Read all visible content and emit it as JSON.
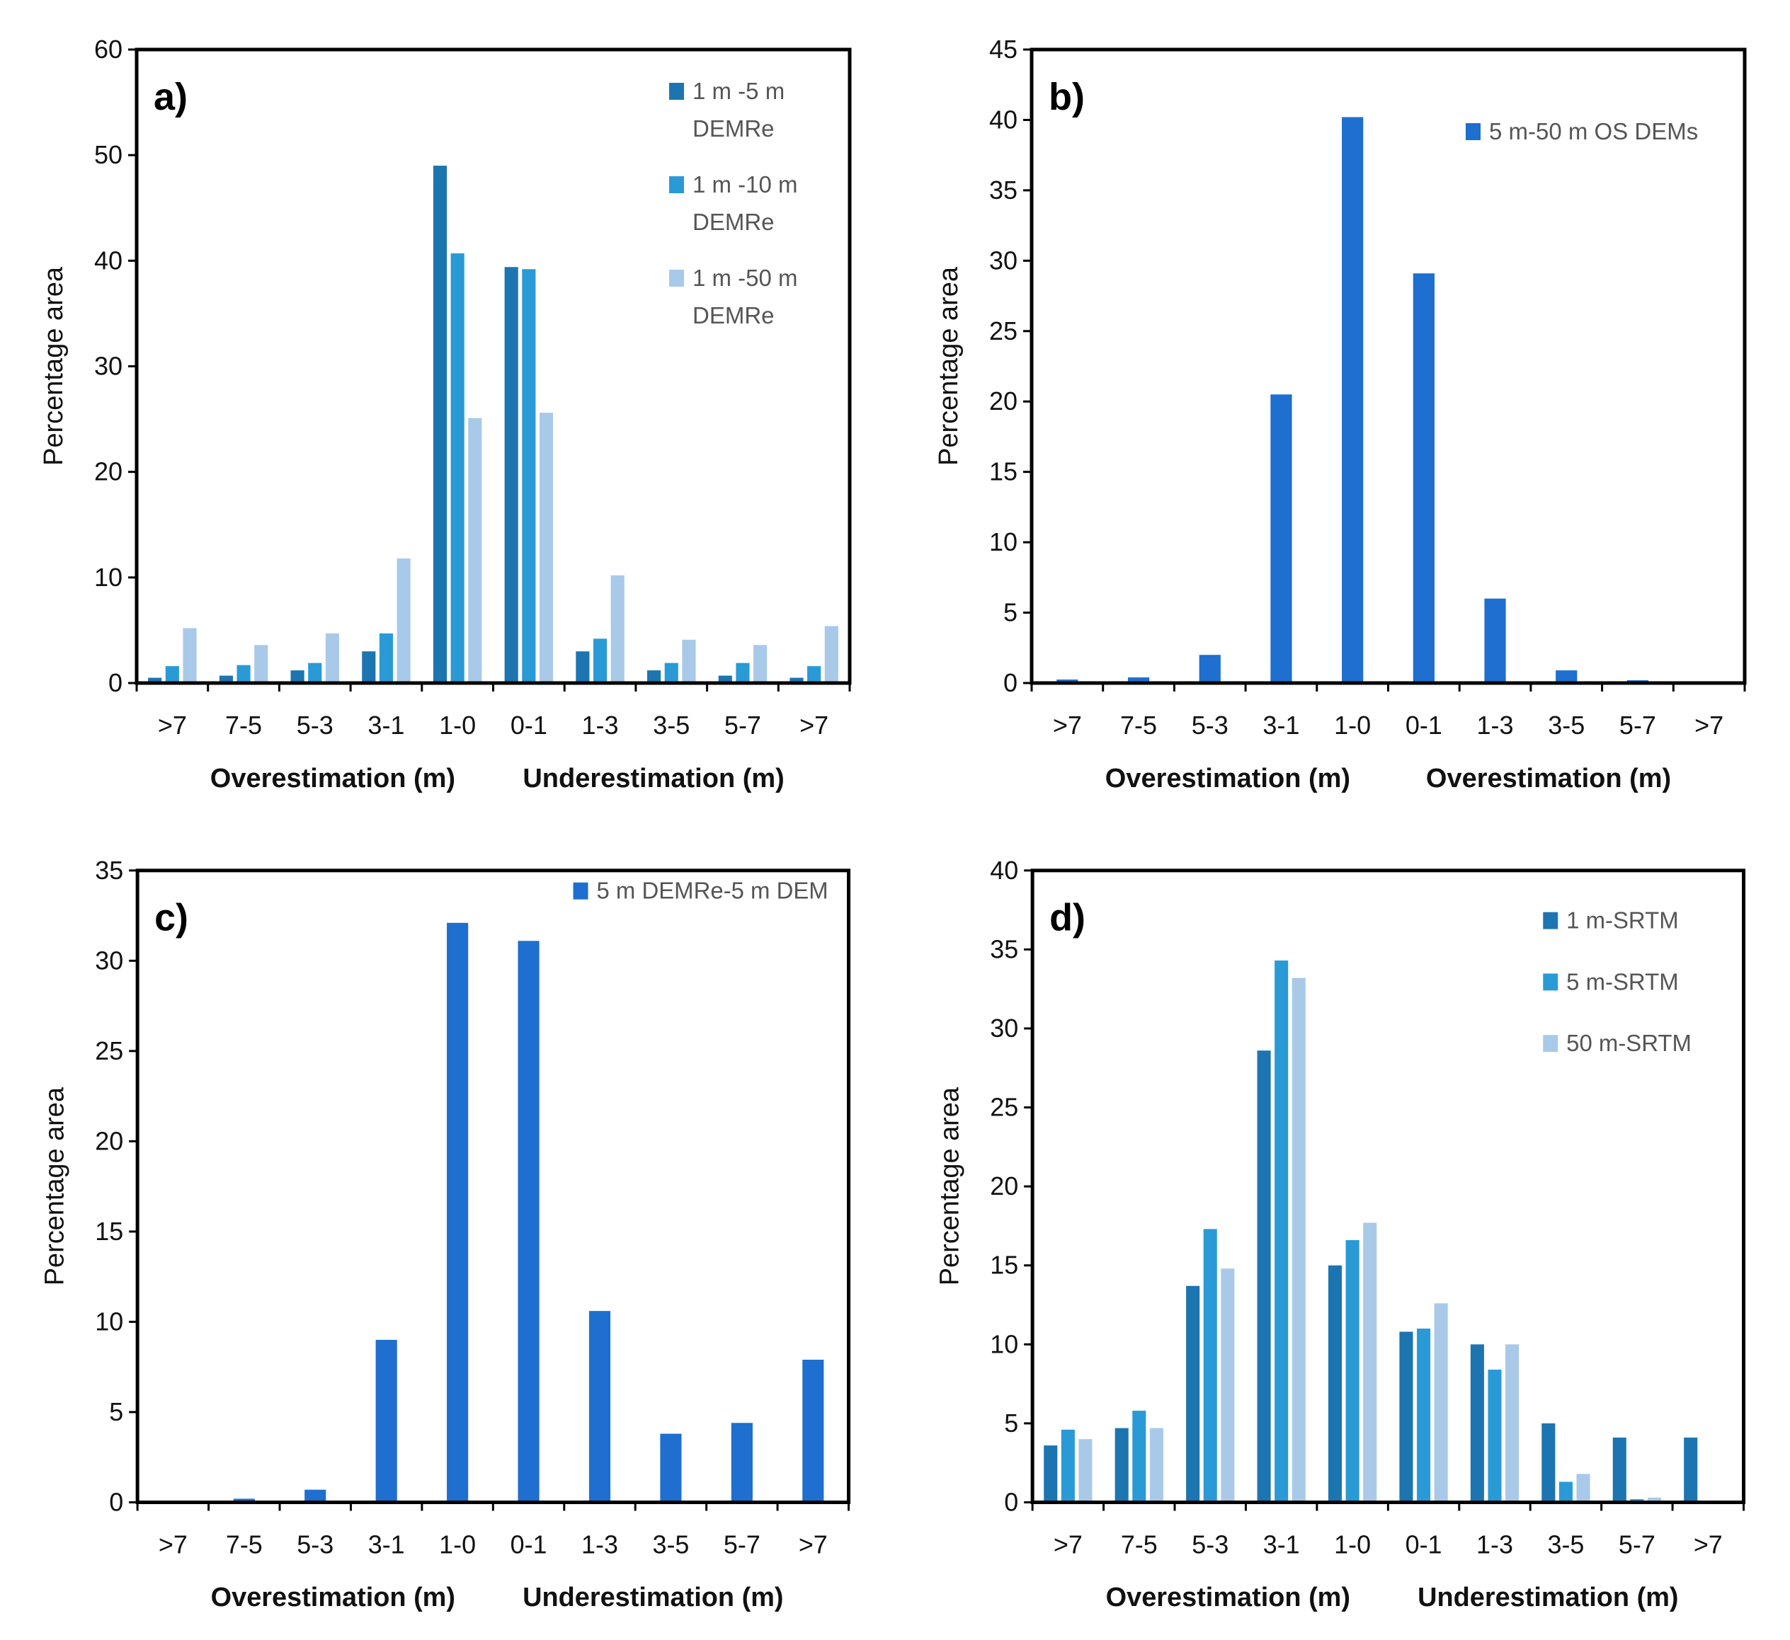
{
  "colors": {
    "dark_blue": "#1c75b0",
    "medium_blue": "#2a9ad6",
    "light_blue": "#a9c9e9",
    "solid_blue": "#1e6fcf"
  },
  "chart_data": [
    {
      "type": "bar",
      "panel_label": "a)",
      "categories": [
        ">7",
        "7-5",
        "5-3",
        "3-1",
        "1-0",
        "0-1",
        "1-3",
        "3-5",
        "5-7",
        ">7"
      ],
      "group_labels": [
        "Overestimation (m)",
        "Underestimation (m)"
      ],
      "ylabel": "Percentage area",
      "ylim": [
        0,
        60
      ],
      "yticks": [
        0,
        10,
        20,
        30,
        40,
        50,
        60
      ],
      "legend_position": "top-right",
      "series": [
        {
          "name": "1 m -5 m DEMRe",
          "legend_lines": [
            "1 m -5 m",
            "DEMRe"
          ],
          "color": "#1c75b0",
          "values": [
            0.5,
            0.7,
            1.2,
            3.0,
            49.0,
            39.4,
            3.0,
            1.2,
            0.7,
            0.5
          ]
        },
        {
          "name": "1 m -10 m DEMRe",
          "legend_lines": [
            "1 m -10 m",
            "DEMRe"
          ],
          "color": "#2a9ad6",
          "values": [
            1.6,
            1.7,
            1.9,
            4.7,
            40.7,
            39.2,
            4.2,
            1.9,
            1.9,
            1.6
          ]
        },
        {
          "name": "1 m -50 m DEMRe",
          "legend_lines": [
            "1 m -50 m",
            "DEMRe"
          ],
          "color": "#a9c9e9",
          "values": [
            5.2,
            3.6,
            4.7,
            11.8,
            25.1,
            25.6,
            10.2,
            4.1,
            3.6,
            5.4
          ]
        }
      ]
    },
    {
      "type": "bar",
      "panel_label": "b)",
      "categories": [
        ">7",
        "7-5",
        "5-3",
        "3-1",
        "1-0",
        "0-1",
        "1-3",
        "3-5",
        "5-7",
        ">7"
      ],
      "group_labels": [
        "Overestimation (m)",
        "Overestimation (m)"
      ],
      "ylabel": "Percentage area",
      "ylim": [
        0,
        45
      ],
      "yticks": [
        0,
        5,
        10,
        15,
        20,
        25,
        30,
        35,
        40,
        45
      ],
      "legend_position": "top-right",
      "series": [
        {
          "name": "5 m-50 m OS DEMs",
          "legend_lines": [
            "5 m-50 m OS DEMs"
          ],
          "color": "#1e6fcf",
          "values": [
            0.25,
            0.4,
            2.0,
            20.5,
            40.2,
            29.1,
            6.0,
            0.9,
            0.2,
            0.0
          ]
        }
      ]
    },
    {
      "type": "bar",
      "panel_label": "c)",
      "categories": [
        ">7",
        "7-5",
        "5-3",
        "3-1",
        "1-0",
        "0-1",
        "1-3",
        "3-5",
        "5-7",
        ">7"
      ],
      "group_labels": [
        "Overestimation (m)",
        "Underestimation (m)"
      ],
      "ylabel": "Percentage area",
      "ylim": [
        0,
        35
      ],
      "yticks": [
        0,
        5,
        10,
        15,
        20,
        25,
        30,
        35
      ],
      "legend_position": "top-right",
      "series": [
        {
          "name": "5 m DEMRe-5 m DEM",
          "legend_lines": [
            "5 m DEMRe-5 m DEM"
          ],
          "color": "#1e6fcf",
          "values": [
            0.0,
            0.2,
            0.7,
            9.0,
            32.1,
            31.1,
            10.6,
            3.8,
            4.4,
            7.9
          ]
        }
      ]
    },
    {
      "type": "bar",
      "panel_label": "d)",
      "categories": [
        ">7",
        "7-5",
        "5-3",
        "3-1",
        "1-0",
        "0-1",
        "1-3",
        "3-5",
        "5-7",
        ">7"
      ],
      "group_labels": [
        "Overestimation (m)",
        "Underestimation (m)"
      ],
      "ylabel": "Percentage area",
      "ylim": [
        0,
        40
      ],
      "yticks": [
        0,
        5,
        10,
        15,
        20,
        25,
        30,
        35,
        40
      ],
      "legend_position": "top-right",
      "series": [
        {
          "name": "1 m-SRTM",
          "legend_lines": [
            "1 m-SRTM"
          ],
          "color": "#1c75b0",
          "values": [
            3.6,
            4.7,
            13.7,
            28.6,
            15.0,
            10.8,
            10.0,
            5.0,
            4.1,
            4.1
          ]
        },
        {
          "name": "5 m-SRTM",
          "legend_lines": [
            "5 m-SRTM"
          ],
          "color": "#2a9ad6",
          "values": [
            4.6,
            5.8,
            17.3,
            34.3,
            16.6,
            11.0,
            8.4,
            1.3,
            0.2,
            0.0
          ]
        },
        {
          "name": "50 m-SRTM",
          "legend_lines": [
            "50 m-SRTM"
          ],
          "color": "#a9c9e9",
          "values": [
            4.0,
            4.7,
            14.8,
            33.2,
            17.7,
            12.6,
            10.0,
            1.8,
            0.3,
            0.0
          ]
        }
      ]
    }
  ]
}
